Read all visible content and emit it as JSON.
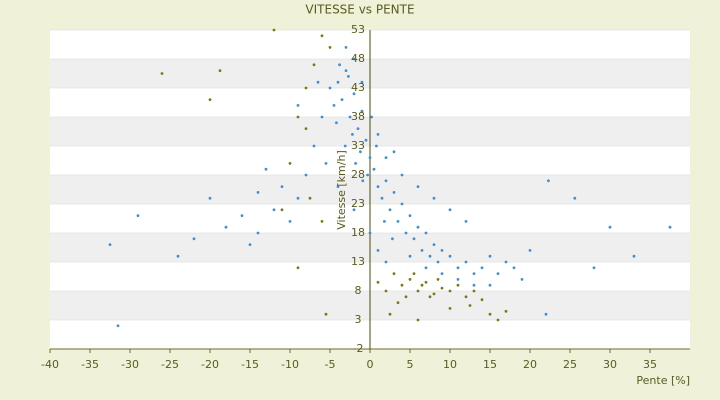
{
  "chart_data": {
    "type": "scatter",
    "title": "VITESSE vs PENTE",
    "x_label": "Pente [%]",
    "y_label": "Vitesse [km/h]",
    "xlim": [
      -40,
      40
    ],
    "xticks": [
      -40,
      -35,
      -30,
      -25,
      -20,
      -15,
      -10,
      -5,
      0,
      5,
      10,
      15,
      20,
      25,
      30,
      35
    ],
    "ylim": [
      -2,
      53
    ],
    "yticks": [
      -2,
      3,
      8,
      13,
      18,
      23,
      28,
      33,
      38,
      43,
      48,
      53
    ],
    "grid": true,
    "series": [
      {
        "color": "#3f8fd8",
        "x": [
          -4,
          -3.5,
          -3,
          -2.5,
          -2,
          -1.5,
          -1,
          -0.5,
          0,
          -4.5,
          -3.8,
          -2.2,
          -1.2,
          -0.3,
          -5,
          -4.2,
          -3.1,
          -2.7,
          -1.8,
          -0.9,
          0.5,
          1,
          1.5,
          2,
          2.5,
          3,
          3.5,
          4,
          4.5,
          5,
          5.5,
          6,
          6.5,
          7,
          7.5,
          8,
          8.5,
          9,
          10,
          11,
          12,
          13,
          14,
          15,
          16,
          17,
          18,
          19,
          20,
          -6,
          -7,
          -8,
          -9,
          -10,
          -11,
          -12,
          -13,
          -14,
          -15,
          -16,
          -18,
          -20,
          -22,
          -24,
          -29,
          -32.5,
          -31.5,
          22.3,
          25.6,
          30,
          37.5,
          33,
          28,
          3,
          4,
          6,
          8,
          10,
          12,
          1,
          2,
          -1,
          -2,
          -3,
          0.2,
          0.8,
          1.8,
          2.8,
          5,
          7,
          9,
          11,
          13,
          15,
          -5.5,
          -6.5,
          -4,
          -2,
          0,
          1,
          2,
          22,
          -14,
          -9
        ],
        "values": [
          44,
          41,
          46,
          38,
          42,
          36,
          39,
          34,
          31,
          40,
          47,
          35,
          32,
          28,
          43,
          37,
          33,
          45,
          30,
          27,
          29,
          26,
          24,
          27,
          22,
          25,
          20,
          23,
          18,
          21,
          17,
          19,
          15,
          18,
          14,
          16,
          13,
          15,
          14,
          12,
          13,
          11,
          12,
          14,
          11,
          13,
          12,
          10,
          15,
          38,
          33,
          28,
          24,
          20,
          26,
          22,
          29,
          18,
          16,
          21,
          19,
          24,
          17,
          14,
          21,
          16,
          2,
          27,
          24,
          19,
          19,
          14,
          12,
          32,
          28,
          26,
          24,
          22,
          20,
          35,
          31,
          44,
          48,
          50,
          38,
          33,
          20,
          17,
          14,
          12,
          11,
          10,
          9,
          9,
          30,
          44,
          26,
          22,
          18,
          15,
          13,
          4,
          25,
          40
        ]
      },
      {
        "color": "#7d7a12",
        "x": [
          -26,
          -18.75,
          -20,
          -12,
          -6,
          -5,
          -7,
          -8,
          -9,
          -10,
          -7.5,
          -6,
          -11,
          -9,
          -5.5,
          -8,
          3,
          4,
          5,
          6,
          7,
          8,
          9,
          10,
          11,
          12,
          13,
          14,
          15,
          16,
          17,
          4.5,
          5.5,
          6.5,
          7.5,
          8.5,
          3.5,
          2,
          1,
          2.5,
          6,
          10,
          12.5
        ],
        "values": [
          45.5,
          46,
          41,
          53,
          52,
          50,
          47,
          43,
          38,
          30,
          24,
          20,
          22,
          12,
          4,
          36,
          11,
          9,
          10,
          8,
          9.5,
          7.5,
          8.5,
          8,
          9,
          7,
          8,
          6.5,
          4,
          3,
          4.5,
          7,
          11,
          9,
          7,
          10,
          6,
          8,
          9.5,
          4,
          3,
          5,
          5.5
        ]
      }
    ]
  }
}
